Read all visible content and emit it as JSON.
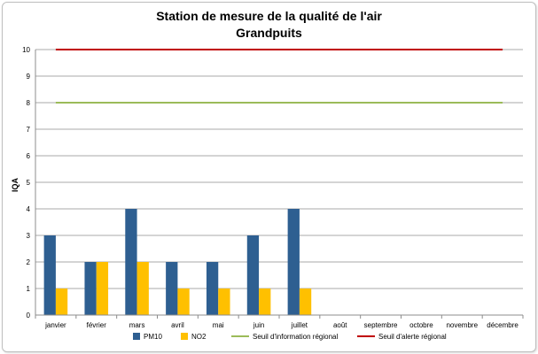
{
  "chart_data": {
    "type": "bar",
    "title": "Station de mesure de la qualité de l'air",
    "subtitle": "Grandpuits",
    "ylabel": "IQA",
    "xlabel": "",
    "ylim": [
      0,
      10
    ],
    "yticks": [
      0,
      1,
      2,
      3,
      4,
      5,
      6,
      7,
      8,
      9,
      10
    ],
    "categories": [
      "janvier",
      "février",
      "mars",
      "avril",
      "mai",
      "juin",
      "juillet",
      "août",
      "septembre",
      "octobre",
      "novembre",
      "décembre"
    ],
    "series": [
      {
        "name": "PM10",
        "kind": "bar",
        "color": "#2e5f91",
        "values": [
          3,
          2,
          4,
          2,
          2,
          3,
          4,
          null,
          null,
          null,
          null,
          null
        ]
      },
      {
        "name": "NO2",
        "kind": "bar",
        "color": "#ffc000",
        "values": [
          1,
          2,
          2,
          1,
          1,
          1,
          1,
          null,
          null,
          null,
          null,
          null
        ]
      },
      {
        "name": "Seuil d'information régional",
        "kind": "line",
        "color": "#9bbb59",
        "value": 8
      },
      {
        "name": "Seuil d'alerte régional",
        "kind": "line",
        "color": "#c00000",
        "value": 10
      }
    ],
    "grid": true,
    "legend_position": "bottom"
  }
}
